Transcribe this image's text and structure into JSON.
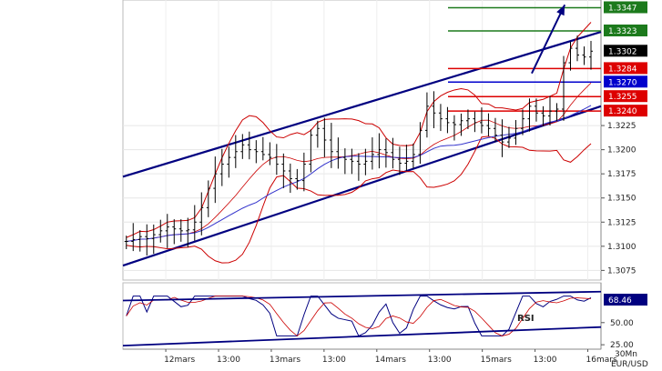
{
  "chart_data": [
    {
      "type": "candlestick",
      "pair": "EUR/USD",
      "timeframe": "30Mn",
      "ylim": [
        1.3065,
        1.3355
      ],
      "yticks": [
        1.3225,
        1.32,
        1.3175,
        1.315,
        1.3125,
        1.31,
        1.3075
      ],
      "ytick_labels": [
        "1.3225",
        "1.3200",
        "1.3175",
        "1.3150",
        "1.3125",
        "1.3100",
        "1.3075"
      ],
      "x_labels": [
        "12mars",
        "13:00",
        "13mars",
        "13:00",
        "14mars",
        "13:00",
        "15mars",
        "13:00",
        "16mars"
      ],
      "x_positions": [
        0,
        8,
        16,
        24,
        32,
        40,
        48,
        56,
        64
      ],
      "x_range": [
        -6.5,
        66
      ],
      "close_series": [
        1.3105,
        1.3107,
        1.311,
        1.3108,
        1.3112,
        1.3116,
        1.312,
        1.3118,
        1.3116,
        1.3117,
        1.3125,
        1.314,
        1.316,
        1.3175,
        1.3185,
        1.3192,
        1.3198,
        1.3205,
        1.32,
        1.3198,
        1.3195,
        1.3192,
        1.3185,
        1.3178,
        1.317,
        1.3168,
        1.3185,
        1.3215,
        1.3222,
        1.321,
        1.3198,
        1.3192,
        1.319,
        1.3188,
        1.3185,
        1.3188,
        1.3195,
        1.32,
        1.3197,
        1.319,
        1.3186,
        1.3188,
        1.3195,
        1.322,
        1.3245,
        1.3238,
        1.3232,
        1.3228,
        1.3226,
        1.323,
        1.3232,
        1.3228,
        1.3225,
        1.3222,
        1.3215,
        1.3208,
        1.3212,
        1.3222,
        1.3232,
        1.3245,
        1.3238,
        1.3235,
        1.324,
        1.3242,
        1.329,
        1.3305,
        1.3298,
        1.3296,
        1.3302
      ],
      "levels": [
        {
          "value": 1.3347,
          "label": "1.3347",
          "color": "#1c7a1c"
        },
        {
          "value": 1.3323,
          "label": "1.3323",
          "color": "#1c7a1c"
        },
        {
          "value": 1.3302,
          "label": "1.3302",
          "color": "#000000"
        },
        {
          "value": 1.3284,
          "label": "1.3284",
          "color": "#dd0000"
        },
        {
          "value": 1.327,
          "label": "1.3270",
          "color": "#0000cc"
        },
        {
          "value": 1.3255,
          "label": "1.3255",
          "color": "#dd0000"
        },
        {
          "value": 1.324,
          "label": "1.3240",
          "color": "#dd0000"
        }
      ],
      "channel": {
        "upper": {
          "from": [
            -6.5,
            1.3172
          ],
          "to": [
            66,
            1.3322
          ]
        },
        "lower": {
          "from": [
            -6.5,
            1.308
          ],
          "to": [
            66,
            1.3245
          ]
        }
      },
      "arrow": {
        "from": [
          55.5,
          1.3279
        ],
        "to": [
          60.5,
          1.335
        ]
      },
      "grid": true,
      "legend": "none"
    },
    {
      "type": "line",
      "indicator": "RSI",
      "label": "RSI",
      "current_value": "68.46",
      "ylim": [
        20,
        95
      ],
      "yticks": [
        50,
        25
      ],
      "ytick_labels": [
        "50.00",
        "25.00"
      ],
      "channel": {
        "upper": {
          "from": [
            -6.5,
            75
          ],
          "to": [
            66,
            85
          ]
        },
        "lower": {
          "from": [
            -6.5,
            24
          ],
          "to": [
            66,
            45
          ]
        }
      }
    }
  ],
  "footer": {
    "timeframe": "30Mn",
    "pair": "EUR/USD"
  }
}
